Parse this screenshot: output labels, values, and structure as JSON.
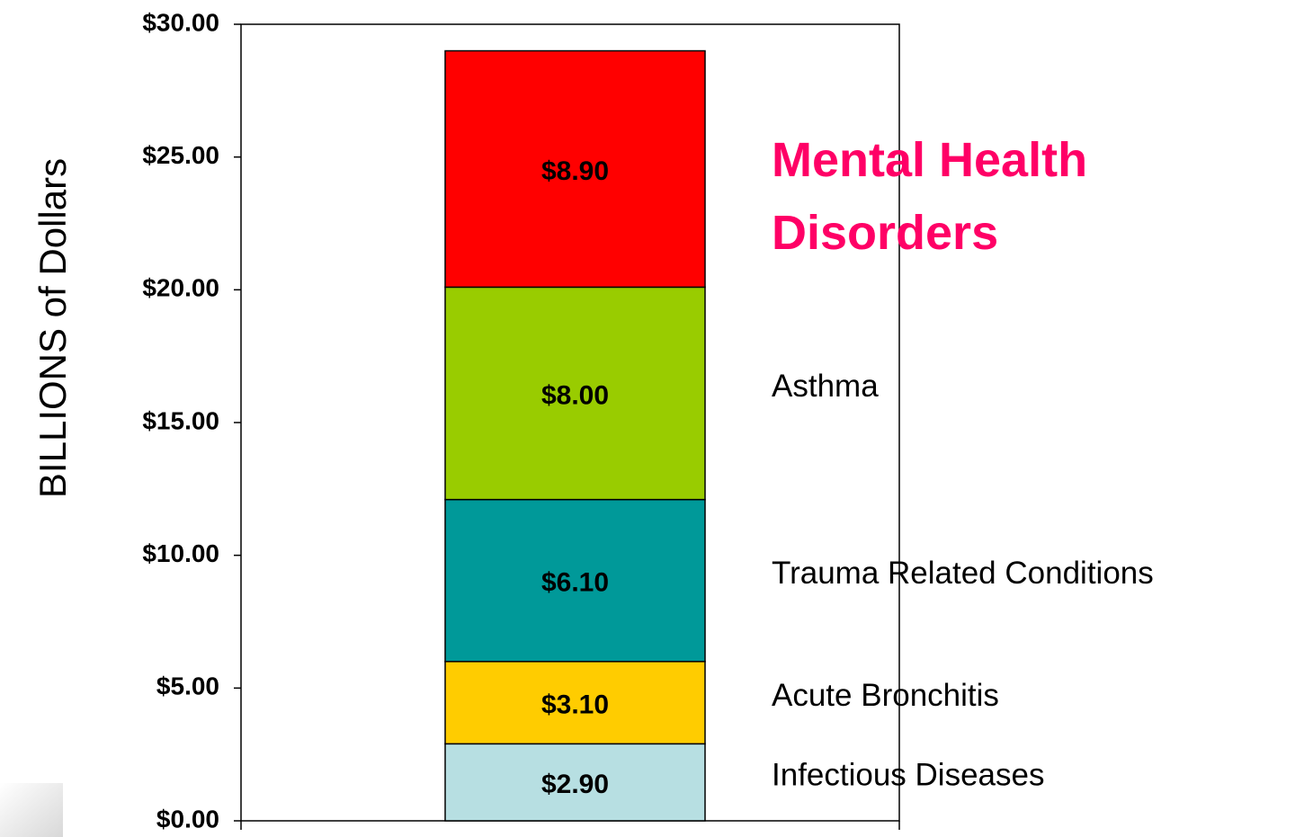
{
  "chart_data": {
    "type": "stacked_bar",
    "y_label": "BILLIONS of Dollars",
    "categories": [
      null
    ],
    "series": [
      {
        "name": "Infectious Diseases",
        "color": "#b7dfe2",
        "values": [
          2.9
        ],
        "value_labels": [
          "$2.90"
        ]
      },
      {
        "name": "Acute Bronchitis",
        "color": "#ffcc00",
        "values": [
          3.1
        ],
        "value_labels": [
          "$3.10"
        ]
      },
      {
        "name": "Trauma Related Conditions",
        "color": "#009999",
        "values": [
          6.1
        ],
        "value_labels": [
          "$6.10"
        ]
      },
      {
        "name": "Asthma",
        "color": "#99cc00",
        "values": [
          8.0
        ],
        "value_labels": [
          "$8.00"
        ]
      },
      {
        "name": "Mental Health Disorders",
        "color": "#ff0000",
        "values": [
          8.9
        ],
        "value_labels": [
          "$8.90"
        ]
      }
    ],
    "ylim": [
      0,
      30
    ],
    "yticks": [
      {
        "value": 0,
        "label": "$0.00"
      },
      {
        "value": 5,
        "label": "$5.00"
      },
      {
        "value": 10,
        "label": "$10.00"
      },
      {
        "value": 15,
        "label": "$15.00"
      },
      {
        "value": 20,
        "label": "$20.00"
      },
      {
        "value": 25,
        "label": "$25.00"
      },
      {
        "value": 30,
        "label": "$30.00"
      }
    ]
  }
}
